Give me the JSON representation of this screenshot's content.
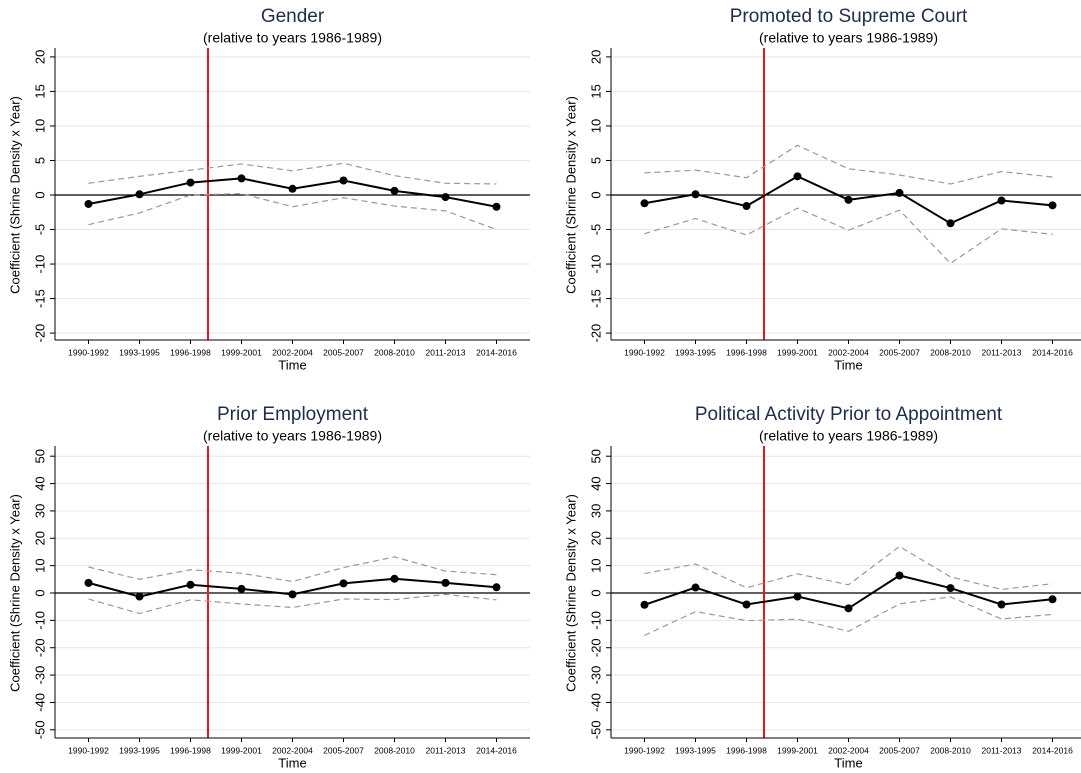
{
  "chart_data": [
    {
      "type": "line",
      "title": "Gender",
      "subtitle": "(relative to years 1986-1989)",
      "xlabel": "Time",
      "ylabel": "Coefficient (Shrine Density x Year)",
      "categories": [
        "1990-1992",
        "1993-1995",
        "1996-1998",
        "1999-2001",
        "2002-2004",
        "2005-2007",
        "2008-2010",
        "2011-2013",
        "2014-2016"
      ],
      "ylim": [
        -21,
        21
      ],
      "yticks": [
        -20,
        -15,
        -10,
        -5,
        0,
        5,
        10,
        15,
        20
      ],
      "grid": true,
      "vline_color": "#e31a1c",
      "series": [
        {
          "color": "#000000",
          "style": "solid",
          "markers": true,
          "values": [
            -1.3,
            0.1,
            1.8,
            2.4,
            0.9,
            2.1,
            0.6,
            -0.3,
            -1.7
          ]
        },
        {
          "color": "#999999",
          "style": "dashed",
          "markers": false,
          "values": [
            1.7,
            2.7,
            3.6,
            4.5,
            3.5,
            4.6,
            2.8,
            1.7,
            1.6
          ]
        },
        {
          "color": "#999999",
          "style": "dashed",
          "markers": false,
          "values": [
            -4.3,
            -2.6,
            0,
            0.2,
            -1.7,
            -0.4,
            -1.6,
            -2.3,
            -5.0
          ]
        }
      ]
    },
    {
      "type": "line",
      "title": "Promoted to Supreme Court",
      "subtitle": "(relative to years 1986-1989)",
      "xlabel": "Time",
      "ylabel": "Coefficient (Shrine Density x Year)",
      "categories": [
        "1990-1992",
        "1993-1995",
        "1996-1998",
        "1999-2001",
        "2002-2004",
        "2005-2007",
        "2008-2010",
        "2011-2013",
        "2014-2016"
      ],
      "ylim": [
        -21,
        21
      ],
      "yticks": [
        -20,
        -15,
        -10,
        -5,
        0,
        5,
        10,
        15,
        20
      ],
      "grid": true,
      "vline_color": "#e31a1c",
      "series": [
        {
          "color": "#000000",
          "style": "solid",
          "markers": true,
          "values": [
            -1.2,
            0.1,
            -1.6,
            2.7,
            -0.7,
            0.3,
            -4.1,
            -0.8,
            -1.5
          ]
        },
        {
          "color": "#999999",
          "style": "dashed",
          "markers": false,
          "values": [
            3.2,
            3.6,
            2.5,
            7.2,
            3.8,
            2.9,
            1.6,
            3.4,
            2.6
          ]
        },
        {
          "color": "#999999",
          "style": "dashed",
          "markers": false,
          "values": [
            -5.6,
            -3.4,
            -5.8,
            -1.9,
            -5.1,
            -2.2,
            -9.9,
            -4.9,
            -5.7
          ]
        }
      ]
    },
    {
      "type": "line",
      "title": "Prior Employment",
      "subtitle": "(relative to years 1986-1989)",
      "xlabel": "Time",
      "ylabel": "Coefficient (Shrine Density x Year)",
      "categories": [
        "1990-1992",
        "1993-1995",
        "1996-1998",
        "1999-2001",
        "2002-2004",
        "2005-2007",
        "2008-2010",
        "2011-2013",
        "2014-2016"
      ],
      "ylim": [
        -53,
        53
      ],
      "yticks": [
        -50,
        -40,
        -30,
        -20,
        -10,
        0,
        10,
        20,
        30,
        40,
        50
      ],
      "grid": true,
      "vline_color": "#e31a1c",
      "series": [
        {
          "color": "#000000",
          "style": "solid",
          "markers": true,
          "values": [
            3.7,
            -1.3,
            3.0,
            1.5,
            -0.5,
            3.5,
            5.2,
            3.7,
            2.1
          ]
        },
        {
          "color": "#999999",
          "style": "dashed",
          "markers": false,
          "values": [
            9.5,
            5.0,
            8.5,
            7.2,
            4.2,
            9.3,
            13.2,
            8.0,
            6.7
          ]
        },
        {
          "color": "#999999",
          "style": "dashed",
          "markers": false,
          "values": [
            -2.2,
            -7.5,
            -2.5,
            -4.0,
            -5.3,
            -2.2,
            -2.4,
            -0.5,
            -2.5
          ]
        }
      ]
    },
    {
      "type": "line",
      "title": "Political Activity Prior to Appointment",
      "subtitle": "(relative to years 1986-1989)",
      "xlabel": "Time",
      "ylabel": "Coefficient (Shrine Density x Year)",
      "categories": [
        "1990-1992",
        "1993-1995",
        "1996-1998",
        "1999-2001",
        "2002-2004",
        "2005-2007",
        "2008-2010",
        "2011-2013",
        "2014-2016"
      ],
      "ylim": [
        -53,
        53
      ],
      "yticks": [
        -50,
        -40,
        -30,
        -20,
        -10,
        0,
        10,
        20,
        30,
        40,
        50
      ],
      "grid": true,
      "vline_color": "#e31a1c",
      "series": [
        {
          "color": "#000000",
          "style": "solid",
          "markers": true,
          "values": [
            -4.3,
            2.0,
            -4.2,
            -1.3,
            -5.6,
            6.4,
            1.8,
            -4.2,
            -2.3
          ]
        },
        {
          "color": "#999999",
          "style": "dashed",
          "markers": false,
          "values": [
            7.1,
            10.6,
            1.9,
            7.0,
            3.0,
            17.0,
            5.9,
            1.3,
            3.4
          ]
        },
        {
          "color": "#999999",
          "style": "dashed",
          "markers": false,
          "values": [
            -15.5,
            -6.8,
            -10.1,
            -9.6,
            -14.0,
            -4.0,
            -1.4,
            -9.5,
            -7.8
          ]
        }
      ]
    }
  ]
}
